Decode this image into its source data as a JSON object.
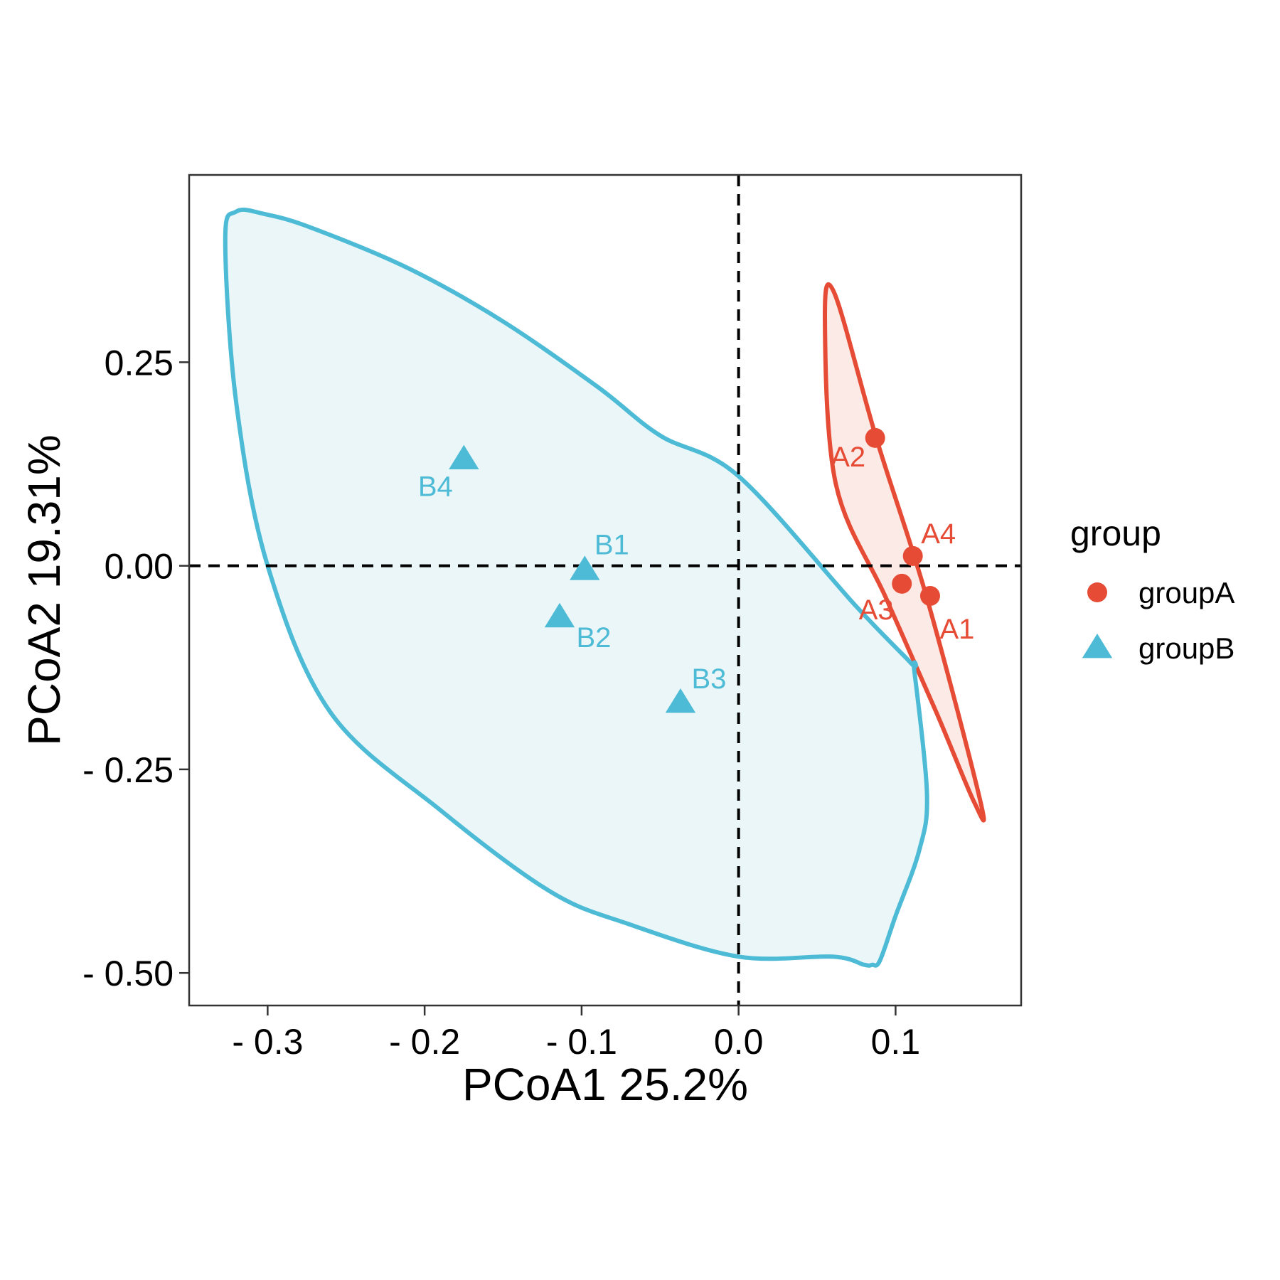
{
  "chart_data": {
    "type": "scatter",
    "xlabel": "PCoA1 25.2%",
    "ylabel": "PCoA2 19.31%",
    "xlim": [
      -0.35,
      0.18
    ],
    "ylim": [
      -0.54,
      0.48
    ],
    "x_ticks": [
      -0.3,
      -0.2,
      -0.1,
      0.0,
      0.1
    ],
    "x_tick_labels": [
      "- 0.3",
      "- 0.2",
      "- 0.1",
      "0.0",
      "0.1"
    ],
    "y_ticks": [
      0.25,
      0.0,
      -0.25,
      -0.5
    ],
    "y_tick_labels": [
      "0.25",
      "0.00",
      "- 0.25",
      "- 0.50"
    ],
    "reference_lines": {
      "x": 0,
      "y": 0,
      "style": "dashed"
    },
    "grid": false,
    "legend": {
      "title": "group",
      "position": "right"
    },
    "series": [
      {
        "name": "groupA",
        "marker": "circle",
        "color": "#E64B35",
        "fill": "#FCEAE7",
        "points": [
          {
            "label": "A1",
            "x": 0.122,
            "y": -0.037
          },
          {
            "label": "A2",
            "x": 0.087,
            "y": 0.157
          },
          {
            "label": "A3",
            "x": 0.104,
            "y": -0.022
          },
          {
            "label": "A4",
            "x": 0.111,
            "y": 0.012
          }
        ],
        "ellipse": [
          [
            0.061,
            0.335
          ],
          [
            0.088,
            0.155
          ],
          [
            0.12,
            -0.04
          ],
          [
            0.154,
            -0.289
          ],
          [
            0.15,
            -0.29
          ],
          [
            0.126,
            -0.18
          ],
          [
            0.094,
            -0.04
          ],
          [
            0.062,
            0.1
          ],
          [
            0.055,
            0.3
          ]
        ]
      },
      {
        "name": "groupB",
        "marker": "triangle",
        "color": "#4DBBD5",
        "fill": "#EAF6F8",
        "points": [
          {
            "label": "B1",
            "x": -0.098,
            "y": -0.005
          },
          {
            "label": "B2",
            "x": -0.114,
            "y": -0.063
          },
          {
            "label": "B3",
            "x": -0.037,
            "y": -0.168
          },
          {
            "label": "B4",
            "x": -0.175,
            "y": 0.131
          }
        ],
        "ellipse": [
          [
            -0.32,
            0.435
          ],
          [
            -0.302,
            0.432
          ],
          [
            -0.272,
            0.415
          ],
          [
            -0.21,
            0.365
          ],
          [
            -0.15,
            0.3
          ],
          [
            -0.09,
            0.22
          ],
          [
            -0.05,
            0.16
          ],
          [
            0.0,
            0.11
          ],
          [
            0.075,
            -0.05
          ],
          [
            0.11,
            -0.12
          ],
          [
            0.112,
            -0.13
          ],
          [
            0.12,
            -0.28
          ],
          [
            0.115,
            -0.35
          ],
          [
            0.1,
            -0.43
          ],
          [
            0.09,
            -0.485
          ],
          [
            0.085,
            -0.49
          ],
          [
            0.08,
            -0.49
          ],
          [
            0.06,
            -0.48
          ],
          [
            -0.0,
            -0.48
          ],
          [
            -0.07,
            -0.44
          ],
          [
            -0.12,
            -0.4
          ],
          [
            -0.19,
            -0.3
          ],
          [
            -0.26,
            -0.18
          ],
          [
            -0.3,
            0.0
          ],
          [
            -0.32,
            0.2
          ],
          [
            -0.327,
            0.4
          ]
        ]
      }
    ]
  }
}
